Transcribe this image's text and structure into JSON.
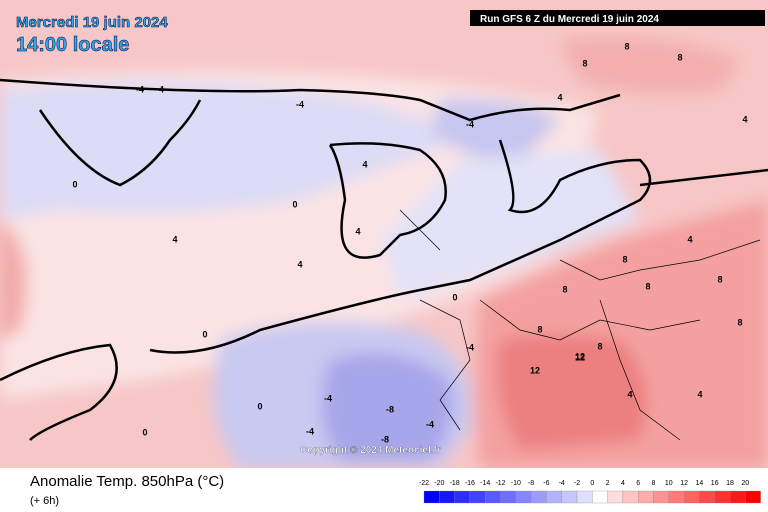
{
  "header": {
    "date": "Mercredi 19 juin 2024",
    "time": "14:00 locale",
    "run": "Run GFS 6 Z du Mercredi 19 juin 2024"
  },
  "footer": {
    "title": "Anomalie Temp. 850hPa (°C)",
    "lead": "(+ 6h)",
    "copyright": "Copyright © 2024 Meteociel.fr"
  },
  "scale": [
    -22,
    -20,
    -18,
    -16,
    -14,
    -12,
    -10,
    -8,
    -6,
    -4,
    -2,
    0,
    2,
    4,
    6,
    8,
    10,
    12,
    14,
    16,
    18,
    20
  ],
  "map_labels": [
    "-4",
    "-4",
    "-4",
    "-4",
    "0",
    "0",
    "4",
    "4",
    "4",
    "4",
    "0",
    "0",
    "-4",
    "-4",
    "-8",
    "-8",
    "-4",
    "4",
    "8",
    "8",
    "8",
    "8",
    "12",
    "12",
    "8",
    "8",
    "4",
    "4",
    "0",
    "-4",
    "8",
    "8",
    "4",
    "4",
    "0",
    "8",
    "12",
    "8"
  ]
}
